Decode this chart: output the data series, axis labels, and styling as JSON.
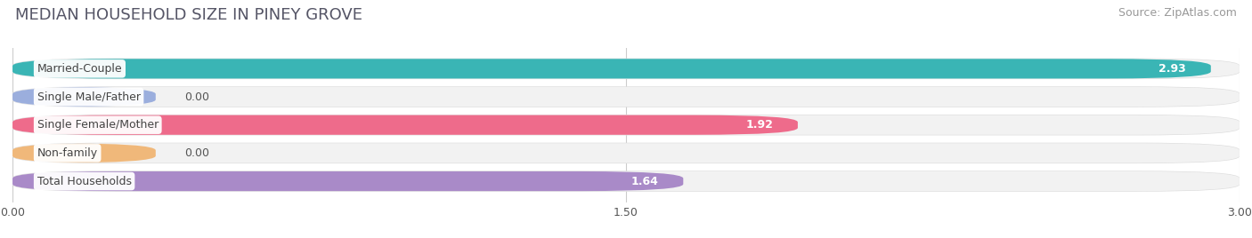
{
  "title": "MEDIAN HOUSEHOLD SIZE IN PINEY GROVE",
  "source": "Source: ZipAtlas.com",
  "categories": [
    "Married-Couple",
    "Single Male/Father",
    "Single Female/Mother",
    "Non-family",
    "Total Households"
  ],
  "values": [
    2.93,
    0.0,
    1.92,
    0.0,
    1.64
  ],
  "bar_colors": [
    "#3ab5b5",
    "#9baedd",
    "#ee6b8b",
    "#f0b87a",
    "#a98ac8"
  ],
  "bar_bg_colors": [
    "#e8f5f5",
    "#edf0f8",
    "#fce8ef",
    "#fdf3e8",
    "#eeebf5"
  ],
  "xlim": [
    0,
    3.0
  ],
  "xticks": [
    0.0,
    1.5,
    3.0
  ],
  "xtick_labels": [
    "0.00",
    "1.50",
    "3.00"
  ],
  "value_labels": [
    "2.93",
    "0.00",
    "1.92",
    "0.00",
    "1.64"
  ],
  "title_fontsize": 13,
  "source_fontsize": 9,
  "label_fontsize": 9,
  "value_fontsize": 9,
  "background_color": "#ffffff"
}
